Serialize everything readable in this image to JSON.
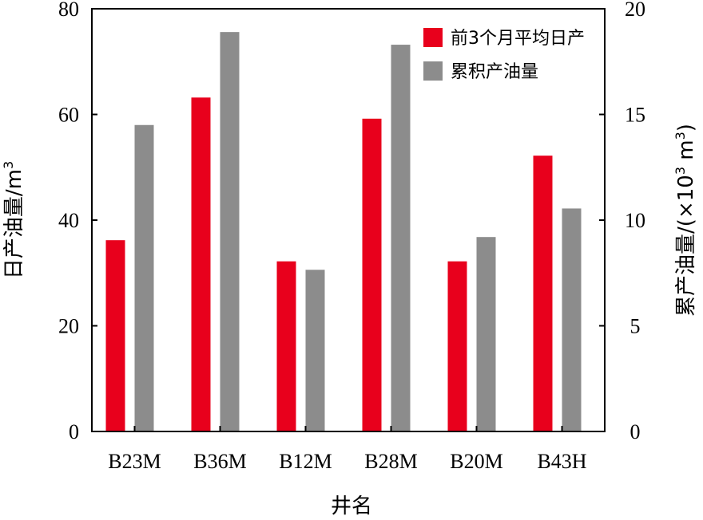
{
  "chart_data": {
    "type": "bar",
    "categories": [
      "B23M",
      "B36M",
      "B12M",
      "B28M",
      "B20M",
      "B43H"
    ],
    "series": [
      {
        "name": "前3个月平均日产",
        "axis": "left",
        "color": "#e8001c",
        "values": [
          36.2,
          63.2,
          32.2,
          59.2,
          32.2,
          52.2
        ]
      },
      {
        "name": "累积产油量",
        "axis": "right",
        "color": "#8c8c8c",
        "values": [
          14.5,
          18.9,
          7.65,
          18.3,
          9.2,
          10.55
        ]
      }
    ],
    "xlabel": "井名",
    "ylabel_left": {
      "text": "日产油量/m",
      "sup": "3"
    },
    "ylabel_right": {
      "text": "累产油量/(×10",
      "sup1": "3",
      "mid": " m",
      "sup2": "3",
      "end": ")"
    },
    "ylim_left": [
      0,
      80
    ],
    "yticks_left": [
      "0",
      "20",
      "40",
      "60",
      "80"
    ],
    "ylim_right": [
      0,
      20
    ],
    "yticks_right": [
      "0",
      "5",
      "10",
      "15",
      "20"
    ],
    "legend_position": "top-right",
    "grid": false
  }
}
